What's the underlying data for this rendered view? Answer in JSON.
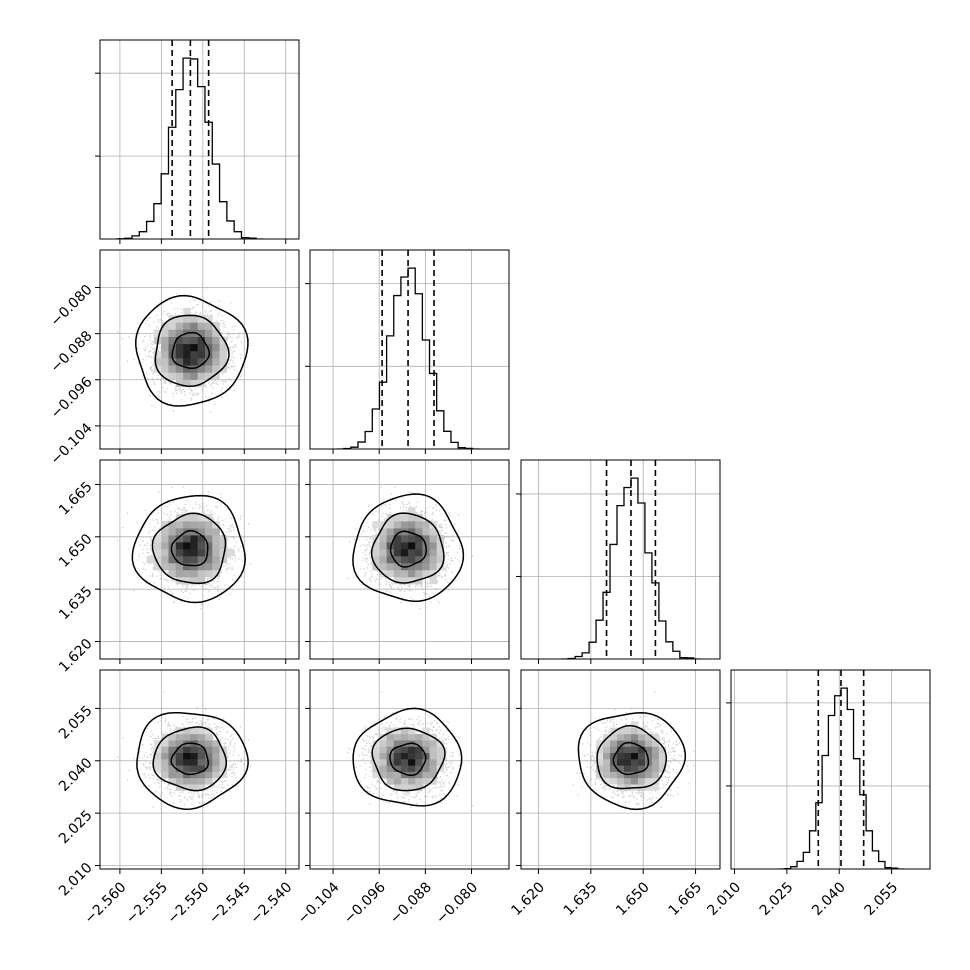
{
  "chart_data": {
    "type": "corner",
    "title": "",
    "parameters": [
      {
        "ticks": [
          -2.56,
          -2.555,
          -2.55,
          -2.545,
          -2.54
        ],
        "tick_labels": [
          "−2.560",
          "−2.555",
          "−2.550",
          "−2.545",
          "−2.540"
        ],
        "range": [
          -2.5624,
          -2.5384
        ],
        "mean": -2.5515,
        "sd": 0.0022,
        "quantiles": [
          -2.5537,
          -2.5515,
          -2.5493
        ]
      },
      {
        "ticks": [
          -0.104,
          -0.096,
          -0.088,
          -0.08
        ],
        "tick_labels": [
          "−0.104",
          "−0.096",
          "−0.088",
          "−0.080"
        ],
        "range": [
          -0.108,
          -0.0735
        ],
        "mean": -0.091,
        "sd": 0.0031,
        "quantiles": [
          -0.0955,
          -0.091,
          -0.0865
        ]
      },
      {
        "ticks": [
          1.62,
          1.635,
          1.65,
          1.665
        ],
        "tick_labels": [
          "1.620",
          "1.635",
          "1.650",
          "1.665"
        ],
        "range": [
          1.615,
          1.672
        ],
        "mean": 1.6465,
        "sd": 0.005,
        "quantiles": [
          1.6395,
          1.6465,
          1.6535
        ]
      },
      {
        "ticks": [
          2.01,
          2.025,
          2.04,
          2.055
        ],
        "tick_labels": [
          "2.010",
          "2.025",
          "2.040",
          "2.055"
        ],
        "range": [
          2.009,
          2.066
        ],
        "mean": 2.0405,
        "sd": 0.0045,
        "quantiles": [
          2.034,
          2.0405,
          2.047
        ]
      }
    ],
    "histogram": {
      "bins": 20,
      "style": "step",
      "quantile_lines": "dashed"
    },
    "contours": {
      "levels": [
        0.39,
        0.86,
        0.99
      ],
      "color": "#000000",
      "fill": "grayscale"
    },
    "grid": true,
    "legend": "none",
    "colors": {
      "line": "#000000",
      "grid": "#b0b0b0",
      "points": "#9a9a9a"
    }
  }
}
